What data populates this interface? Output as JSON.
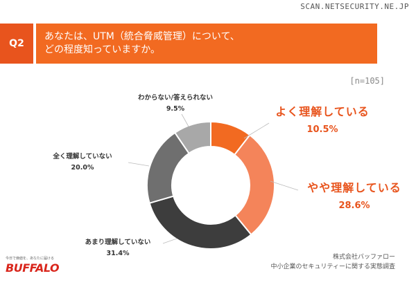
{
  "watermark": "SCAN.NETSECURITY.NE.JP",
  "header": {
    "q_label": "Q2",
    "question": "あなたは、UTM（統合脅威管理）について、\nどの程度知っていますか。"
  },
  "sample_size": "[n=105]",
  "chart_data": {
    "type": "pie",
    "donut": true,
    "categories": [
      "よく理解している",
      "やや理解している",
      "あまり理解していない",
      "全く理解していない",
      "わからない/答えられない"
    ],
    "values": [
      10.5,
      28.6,
      31.4,
      20.0,
      9.5
    ],
    "value_labels": [
      "10.5%",
      "28.6%",
      "31.4%",
      "20.0%",
      "9.5%"
    ],
    "colors": [
      "#f26a21",
      "#f4845a",
      "#3d3d3d",
      "#6f6f6f",
      "#a8a8a8"
    ]
  },
  "logo": {
    "tagline": "今日で価値を、あなたに届ける",
    "name": "BUFFALO"
  },
  "source": {
    "line1": "株式会社バッファロー",
    "line2": "中小企業のセキュリティーに関する実態調査"
  }
}
